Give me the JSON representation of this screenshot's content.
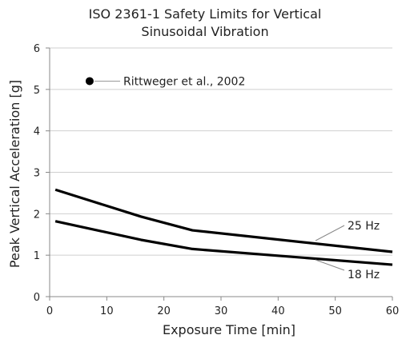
{
  "chart_data": {
    "type": "line",
    "title_line1": "ISO 2361-1 Safety Limits for Vertical",
    "title_line2": "Sinusoidal Vibration",
    "xlabel": "Exposure Time [min]",
    "ylabel": "Peak Vertical Acceleration [g]",
    "xlim": [
      0,
      60
    ],
    "ylim": [
      0,
      6
    ],
    "xticks": [
      0,
      10,
      20,
      30,
      40,
      50,
      60
    ],
    "yticks": [
      0,
      1,
      2,
      3,
      4,
      5,
      6
    ],
    "grid": "horizontal",
    "series": [
      {
        "name": "25 Hz",
        "x": [
          1,
          16,
          25,
          60
        ],
        "y": [
          2.58,
          1.93,
          1.6,
          1.08
        ],
        "color": "#000000"
      },
      {
        "name": "18 Hz",
        "x": [
          1,
          16,
          25,
          60
        ],
        "y": [
          1.82,
          1.37,
          1.15,
          0.77
        ],
        "color": "#000000"
      }
    ],
    "points": [
      {
        "name": "Rittweger et al., 2002",
        "x": 7,
        "y": 5.2
      }
    ]
  }
}
